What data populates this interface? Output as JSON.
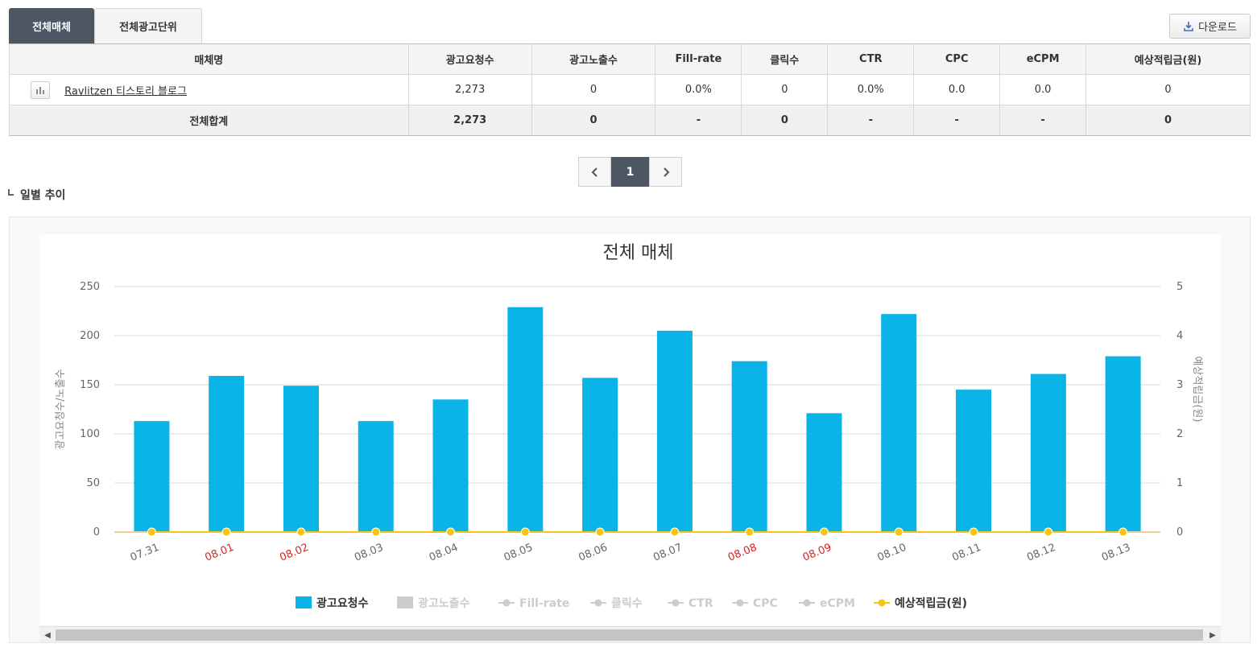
{
  "tabs": [
    {
      "label": "전체매체",
      "active": true
    },
    {
      "label": "전체광고단위",
      "active": false
    }
  ],
  "download_label": "다운로드",
  "table": {
    "headers": [
      "매체명",
      "광고요청수",
      "광고노출수",
      "Fill-rate",
      "클릭수",
      "CTR",
      "CPC",
      "eCPM",
      "예상적립금(원)"
    ],
    "rows": [
      {
        "name": "Ravlitzen 티스토리 블로그",
        "requests": "2,273",
        "impressions": "0",
        "fill_rate": "0.0%",
        "clicks": "0",
        "ctr": "0.0%",
        "cpc": "0.0",
        "ecpm": "0.0",
        "revenue": "0"
      }
    ],
    "total": {
      "label": "전체합계",
      "requests": "2,273",
      "impressions": "0",
      "fill_rate": "-",
      "clicks": "0",
      "ctr": "-",
      "cpc": "-",
      "ecpm": "-",
      "revenue": "0"
    }
  },
  "pagination": {
    "current": "1"
  },
  "section_title": "일별 추이",
  "chart_data": {
    "type": "bar",
    "title": "전체 매체",
    "categories": [
      "07.31",
      "08.01",
      "08.02",
      "08.03",
      "08.04",
      "08.05",
      "08.06",
      "08.07",
      "08.08",
      "08.09",
      "08.10",
      "08.11",
      "08.12",
      "08.13"
    ],
    "weekend_categories": [
      "08.01",
      "08.02",
      "08.08",
      "08.09"
    ],
    "ylabel": "광고요청수/노출수",
    "y2label": "예상적립금(원)",
    "ylim": [
      0,
      250
    ],
    "y_ticks": [
      0,
      50,
      100,
      150,
      200,
      250
    ],
    "y2lim": [
      0,
      5
    ],
    "y2_ticks": [
      0,
      1,
      2,
      3,
      4,
      5
    ],
    "grid": true,
    "legend_position": "bottom",
    "series": [
      {
        "name": "광고요청수",
        "type": "bar",
        "color": "#0ab4e6",
        "values": [
          113,
          159,
          149,
          113,
          135,
          229,
          157,
          205,
          174,
          121,
          222,
          145,
          161,
          179
        ],
        "enabled": true
      },
      {
        "name": "광고노출수",
        "type": "bar",
        "color": "#cccccc",
        "values": [
          0,
          0,
          0,
          0,
          0,
          0,
          0,
          0,
          0,
          0,
          0,
          0,
          0,
          0
        ],
        "enabled": false
      },
      {
        "name": "Fill-rate",
        "type": "line",
        "color": "#cccccc",
        "enabled": false
      },
      {
        "name": "클릭수",
        "type": "line",
        "color": "#cccccc",
        "enabled": false
      },
      {
        "name": "CTR",
        "type": "line",
        "color": "#cccccc",
        "enabled": false
      },
      {
        "name": "CPC",
        "type": "line",
        "color": "#cccccc",
        "enabled": false
      },
      {
        "name": "eCPM",
        "type": "line",
        "color": "#cccccc",
        "enabled": false
      },
      {
        "name": "예상적립금(원)",
        "type": "line",
        "color": "#f5c518",
        "values": [
          0,
          0,
          0,
          0,
          0,
          0,
          0,
          0,
          0,
          0,
          0,
          0,
          0,
          0
        ],
        "enabled": true
      }
    ]
  }
}
